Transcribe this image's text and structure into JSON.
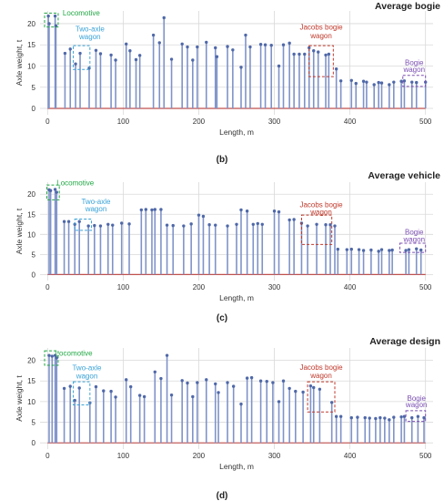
{
  "colors": {
    "stem": "#7f93c9",
    "head": "#4f68a8",
    "baseline": "#c0504d",
    "grid": "#d9d9d9",
    "axis_text": "#333333",
    "locomotive": "#22a845",
    "two_axle": "#3aa3d8",
    "jacobs": "#c0392b",
    "bogie": "#7b4fb3"
  },
  "chart_data": [
    {
      "type": "stem",
      "panel": "(b)",
      "title": "Average bogie",
      "xlabel": "Length, m",
      "ylabel": "Axle weight, t",
      "xlim": [
        -10,
        510
      ],
      "ylim": [
        -1.5,
        23
      ],
      "xticks": [
        0,
        100,
        200,
        300,
        400,
        500
      ],
      "yticks": [
        0,
        5,
        10,
        15,
        20
      ],
      "grid": true,
      "baseline": 0,
      "series": [
        {
          "x": [
            1,
            2,
            10,
            11,
            23,
            30,
            37,
            43,
            55,
            64,
            70,
            84,
            90,
            104,
            109,
            117,
            122,
            140,
            148,
            154,
            164,
            178,
            185,
            192,
            198,
            210,
            222,
            224,
            238,
            245,
            256,
            262,
            268,
            282,
            288,
            296,
            306,
            312,
            320,
            326,
            333,
            340,
            346,
            352,
            358,
            368,
            372,
            382,
            388,
            402,
            408,
            418,
            422,
            432,
            438,
            442,
            452,
            458,
            468,
            472,
            482,
            488,
            500
          ],
          "y": [
            21.8,
            20,
            21.8,
            19.5,
            13,
            14,
            10.5,
            13,
            9.5,
            13.7,
            12.9,
            12.6,
            11.4,
            15.2,
            13.6,
            11.5,
            12.5,
            17.3,
            15.5,
            21.4,
            11.6,
            15.2,
            14.5,
            11.4,
            14.5,
            15.6,
            14.3,
            12.2,
            14.6,
            13.8,
            9.7,
            17.3,
            14.5,
            15.1,
            15,
            14.9,
            10,
            15,
            15.4,
            12.8,
            12.8,
            12.8,
            14.3,
            13.6,
            13.3,
            12.6,
            12.8,
            9.3,
            6.5,
            6.6,
            5.9,
            6.4,
            6.2,
            5.6,
            6.1,
            6,
            5.6,
            6.2,
            6.4,
            6.5,
            6.2,
            6.1,
            6.2
          ]
        }
      ],
      "annotations": [
        {
          "label": "Locomotive",
          "color": "#22a845"
        },
        {
          "label": "Two-axle wagon",
          "color": "#3aa3d8"
        },
        {
          "label": "Jacobs bogie wagon",
          "color": "#c0392b"
        },
        {
          "label": "Bogie wagon",
          "color": "#7b4fb3"
        }
      ]
    },
    {
      "type": "stem",
      "panel": "(c)",
      "title": "Average vehicle",
      "xlabel": "Length, m",
      "ylabel": "Axle weight, t",
      "xlim": [
        -10,
        510
      ],
      "ylim": [
        -1.5,
        23
      ],
      "xticks": [
        0,
        100,
        200,
        300,
        400,
        500
      ],
      "yticks": [
        0,
        5,
        10,
        15,
        20
      ],
      "grid": true,
      "baseline": 0,
      "series": [
        {
          "x": [
            2,
            4,
            10,
            12,
            22,
            28,
            36,
            42,
            54,
            62,
            70,
            80,
            86,
            98,
            108,
            124,
            130,
            138,
            142,
            150,
            158,
            166,
            180,
            190,
            200,
            206,
            214,
            222,
            238,
            250,
            256,
            264,
            272,
            278,
            284,
            300,
            306,
            320,
            326,
            336,
            344,
            356,
            368,
            374,
            380,
            384,
            396,
            402,
            412,
            418,
            428,
            438,
            442,
            452,
            456,
            474,
            478,
            488,
            494
          ],
          "y": [
            21.1,
            20.9,
            21.2,
            20.5,
            13.2,
            13.2,
            12.5,
            13.2,
            12.1,
            12.2,
            12.1,
            12.5,
            12.3,
            12.8,
            12.6,
            16.1,
            16.2,
            16.1,
            16.2,
            16.2,
            12.3,
            12.2,
            12.1,
            12.6,
            14.8,
            14.5,
            12.4,
            12.3,
            12.1,
            12.5,
            16.1,
            15.8,
            12.5,
            12.7,
            12.5,
            15.8,
            15.6,
            13.6,
            13.7,
            12.8,
            12.1,
            12.5,
            12.4,
            12.4,
            12.1,
            6.3,
            6.2,
            6.3,
            6.2,
            6,
            6.1,
            5.8,
            6.2,
            6,
            6.1,
            6,
            6.2,
            6.4,
            6.1
          ]
        }
      ],
      "annotations": [
        {
          "label": "Locomotive",
          "color": "#22a845"
        },
        {
          "label": "Two-axle wagon",
          "color": "#3aa3d8"
        },
        {
          "label": "Jacobs bogie wagon",
          "color": "#c0392b"
        },
        {
          "label": "Bogie wagon",
          "color": "#7b4fb3"
        }
      ]
    },
    {
      "type": "stem",
      "panel": "(d)",
      "title": "Average design",
      "xlabel": "Length, m",
      "ylabel": "Axle weight, t",
      "xlim": [
        -10,
        510
      ],
      "ylim": [
        -1.5,
        23
      ],
      "xticks": [
        0,
        100,
        200,
        300,
        400,
        500
      ],
      "yticks": [
        0,
        5,
        10,
        15,
        20
      ],
      "grid": true,
      "baseline": 0,
      "series": [
        {
          "x": [
            2,
            6,
            10,
            12,
            22,
            30,
            36,
            42,
            56,
            64,
            74,
            84,
            90,
            104,
            110,
            122,
            128,
            142,
            150,
            158,
            164,
            178,
            185,
            192,
            198,
            210,
            222,
            226,
            238,
            246,
            256,
            264,
            270,
            282,
            290,
            298,
            306,
            312,
            320,
            328,
            338,
            348,
            352,
            360,
            376,
            382,
            388,
            402,
            410,
            420,
            426,
            434,
            440,
            446,
            452,
            458,
            468,
            472,
            482,
            490,
            498
          ],
          "y": [
            21.2,
            21,
            21.2,
            20.6,
            13.2,
            13.7,
            10.3,
            13.3,
            9.7,
            13.6,
            12.6,
            12.5,
            11.1,
            15.3,
            13.6,
            11.5,
            11.2,
            17.2,
            15.6,
            21.2,
            11.6,
            15.1,
            14.5,
            11.2,
            14.6,
            15.3,
            14.3,
            12.2,
            14.6,
            13.7,
            9.4,
            15.7,
            15.8,
            15,
            14.9,
            14.6,
            10,
            15,
            13.2,
            12.5,
            12.3,
            13.8,
            13.4,
            13,
            9.8,
            6.4,
            6.4,
            6.1,
            6.2,
            6.1,
            6,
            5.9,
            6.1,
            6,
            5.6,
            6.2,
            6.3,
            6.4,
            6.1,
            6.4,
            6.1
          ]
        }
      ],
      "annotations": [
        {
          "label": "Locomotive",
          "color": "#22a845"
        },
        {
          "label": "Two-axle wagon",
          "color": "#3aa3d8"
        },
        {
          "label": "Jacobs bogie wagon",
          "color": "#c0392b"
        },
        {
          "label": "Bogie wagon",
          "color": "#7b4fb3"
        }
      ]
    }
  ]
}
